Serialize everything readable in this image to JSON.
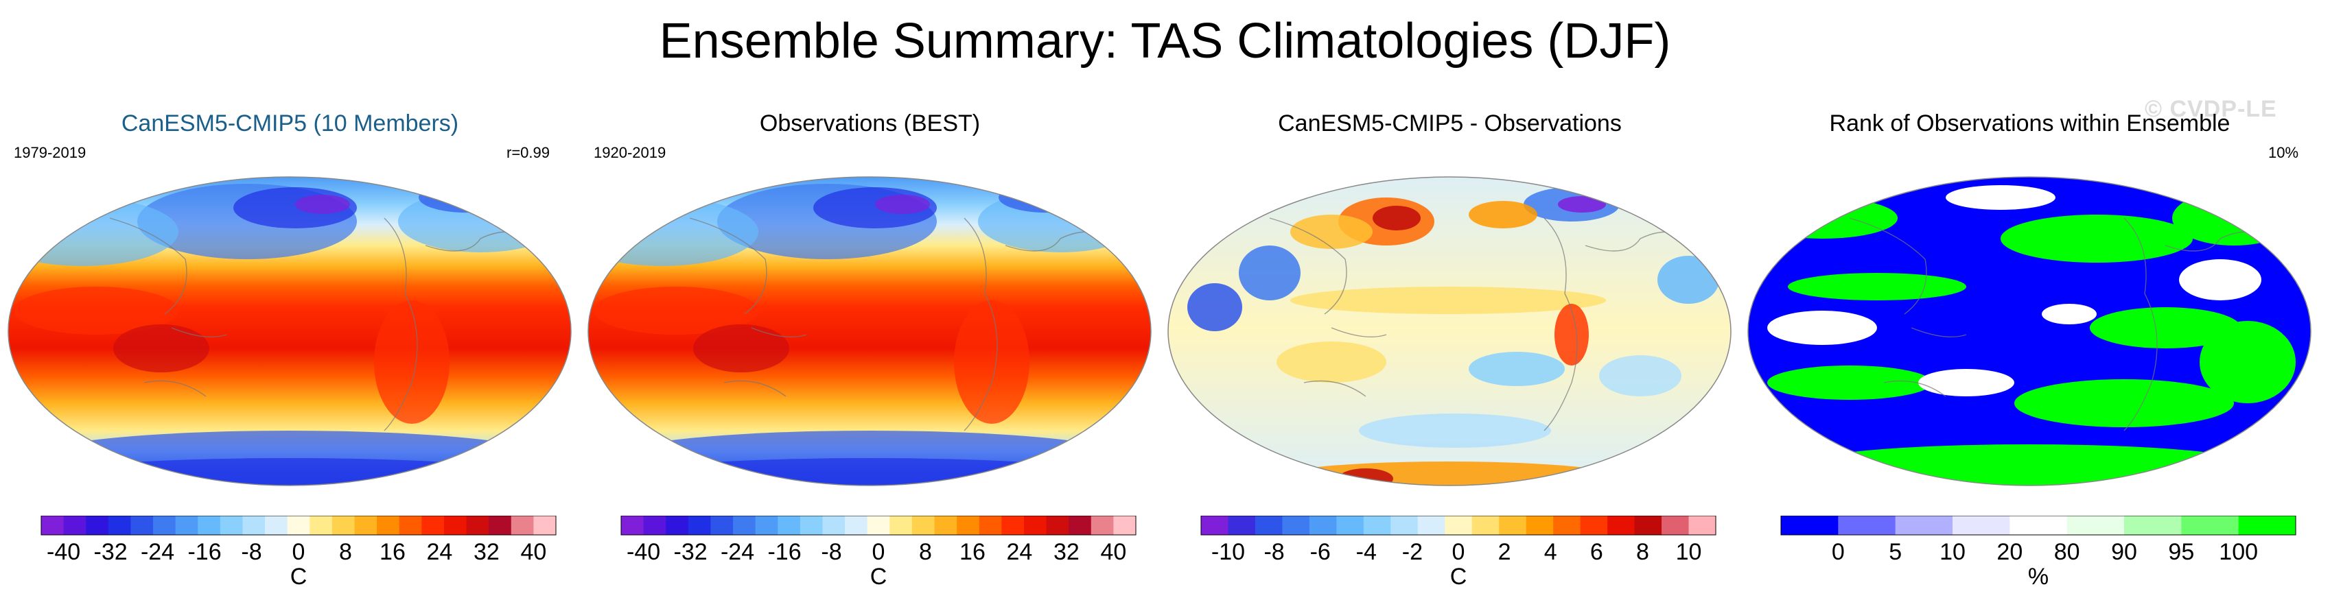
{
  "page_title": "Ensemble Summary: TAS Climatologies (DJF)",
  "watermark": "© CVDP-LE",
  "colors": {
    "model_title": "#1a5e8a",
    "map_border": "#888888",
    "temp_scale": [
      "#7f1fd9",
      "#5a14dc",
      "#2f14e0",
      "#1f2fe6",
      "#2d55ea",
      "#3e7af0",
      "#4f9cf6",
      "#66b9fb",
      "#8ad0fd",
      "#b3e1fd",
      "#d9eefc",
      "#fffbe0",
      "#ffeb8a",
      "#ffd24d",
      "#ffb320",
      "#ff8c00",
      "#ff5c00",
      "#ff2d00",
      "#ee1600",
      "#cf0d0d",
      "#b00a2a",
      "#e9828c",
      "#ffc1c6"
    ],
    "diff_scale": [
      "#7f1fd9",
      "#3b2ce0",
      "#2d55ea",
      "#3e7af0",
      "#4f9cf6",
      "#66b9fb",
      "#8ad0fd",
      "#b3e1fd",
      "#d9eefc",
      "#fff6c0",
      "#ffe070",
      "#ffc030",
      "#ff9a00",
      "#ff6a00",
      "#ff3800",
      "#e81000",
      "#c00a0a",
      "#e06070",
      "#ffb0b8"
    ],
    "rank_scale": [
      "#0000ff",
      "#6a6aff",
      "#b0b0ff",
      "#e6e6ff",
      "#ffffff",
      "#e6ffe6",
      "#b0ffb0",
      "#6aff6a",
      "#00ff00"
    ]
  },
  "panels": [
    {
      "title": "CanESM5-CMIP5 (10 Members)",
      "left_label": "1979-2019",
      "right_label": "r=0.99",
      "map_kind": "temperature",
      "colorbar": {
        "unit": "C",
        "ticks": [
          "-40",
          "-32",
          "-24",
          "-16",
          "-8",
          "0",
          "8",
          "16",
          "24",
          "32",
          "40"
        ]
      }
    },
    {
      "title": "Observations (BEST)",
      "left_label": "1920-2019",
      "right_label": "",
      "map_kind": "temperature",
      "colorbar": {
        "unit": "C",
        "ticks": [
          "-40",
          "-32",
          "-24",
          "-16",
          "-8",
          "0",
          "8",
          "16",
          "24",
          "32",
          "40"
        ]
      }
    },
    {
      "title": "CanESM5-CMIP5 - Observations",
      "left_label": "",
      "right_label": "",
      "map_kind": "difference",
      "colorbar": {
        "unit": "C",
        "ticks": [
          "-10",
          "-8",
          "-6",
          "-4",
          "-2",
          "0",
          "2",
          "4",
          "6",
          "8",
          "10"
        ]
      }
    },
    {
      "title": "Rank of Observations within Ensemble",
      "left_label": "",
      "right_label": "10%",
      "map_kind": "rank",
      "colorbar": {
        "unit": "%",
        "ticks": [
          "0",
          "5",
          "10",
          "20",
          "80",
          "90",
          "95",
          "100"
        ]
      }
    }
  ],
  "chart_data": [
    {
      "type": "heatmap",
      "title": "CanESM5-CMIP5 (10 Members)",
      "period": "1979-2019",
      "pattern_correlation": "r=0.99",
      "variable": "TAS",
      "season": "DJF",
      "unit": "C",
      "colorbar_range": [
        -40,
        40
      ],
      "colorbar_step": 4,
      "colorbar_ticks": [
        -40,
        -32,
        -24,
        -16,
        -8,
        0,
        8,
        16,
        24,
        32,
        40
      ]
    },
    {
      "type": "heatmap",
      "title": "Observations (BEST)",
      "period": "1920-2019",
      "variable": "TAS",
      "season": "DJF",
      "unit": "C",
      "colorbar_range": [
        -40,
        40
      ],
      "colorbar_step": 4,
      "colorbar_ticks": [
        -40,
        -32,
        -24,
        -16,
        -8,
        0,
        8,
        16,
        24,
        32,
        40
      ]
    },
    {
      "type": "heatmap",
      "title": "CanESM5-CMIP5 - Observations",
      "unit": "C",
      "colorbar_range": [
        -10,
        10
      ],
      "colorbar_step": 1,
      "colorbar_ticks": [
        -10,
        -8,
        -6,
        -4,
        -2,
        0,
        2,
        4,
        6,
        8,
        10
      ]
    },
    {
      "type": "heatmap",
      "title": "Rank of Observations within Ensemble",
      "summary_label": "10%",
      "unit": "%",
      "colorbar_bins": [
        0,
        5,
        10,
        20,
        80,
        90,
        95,
        100
      ],
      "colorbar_ticks": [
        0,
        5,
        10,
        20,
        80,
        90,
        95,
        100
      ]
    }
  ]
}
